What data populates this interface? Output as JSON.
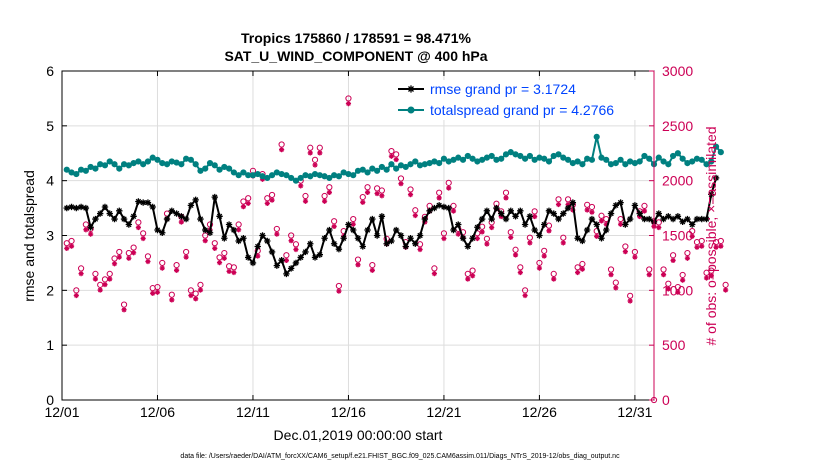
{
  "chart_data": {
    "type": "line",
    "title_line1": "Tropics 175860 / 178591 = 98.471%",
    "title_line2": "SAT_U_WIND_COMPONENT @ 400 hPa",
    "xlabel": "Dec.01,2019 00:00:00 start",
    "ylabel_left": "rmse and totalspread",
    "ylabel_right": "# of obs: o=possible; ×=assimilated",
    "footnote": "data file: /Users/raeder/DAI/ATM_forcXX/CAM6_setup/f.e21.FHIST_BGC.f09_025.CAM6assim.011/Diags_NTrS_2019-12/obs_diag_output.nc",
    "xlim": [
      1,
      32
    ],
    "ylim_left": [
      0,
      6
    ],
    "ylim_right": [
      0,
      3000
    ],
    "x_ticks": [
      1,
      6,
      11,
      16,
      21,
      26,
      31
    ],
    "x_tick_labels": [
      "12/01",
      "12/06",
      "12/11",
      "12/16",
      "12/21",
      "12/26",
      "12/31"
    ],
    "y_left_ticks": [
      0,
      1,
      2,
      3,
      4,
      5,
      6
    ],
    "y_left_tick_labels": [
      "0",
      "1",
      "2",
      "3",
      "4",
      "5",
      "6"
    ],
    "y_right_ticks": [
      0,
      500,
      1000,
      1500,
      2000,
      2500,
      3000
    ],
    "y_right_tick_labels": [
      "0",
      "500",
      "1000",
      "1500",
      "2000",
      "2500",
      "3000"
    ],
    "colors": {
      "rmse": "#000000",
      "spread": "#008080",
      "obs": "#cc0055",
      "legend_text": "#0044ff",
      "grid": "#dddddd"
    },
    "series": [
      {
        "name": "rmse",
        "legend": "rmse grand pr = 3.1724",
        "axis": "left",
        "x_start": 1.25,
        "x_step": 0.25,
        "values": [
          3.5,
          3.52,
          3.5,
          3.52,
          3.5,
          3.15,
          3.3,
          3.4,
          3.52,
          3.4,
          3.3,
          3.45,
          3.3,
          3.2,
          3.35,
          3.62,
          3.6,
          3.6,
          3.52,
          3.1,
          3.05,
          3.3,
          3.45,
          3.4,
          3.35,
          3.3,
          3.55,
          3.65,
          3.3,
          3.1,
          3.05,
          3.7,
          3.35,
          2.95,
          3.2,
          3.1,
          2.9,
          2.95,
          2.6,
          2.5,
          2.8,
          3.0,
          2.9,
          2.7,
          2.45,
          2.55,
          2.3,
          2.4,
          2.5,
          2.6,
          2.7,
          2.85,
          2.6,
          2.65,
          2.95,
          3.1,
          2.85,
          2.75,
          2.95,
          3.2,
          3.1,
          2.95,
          2.8,
          3.1,
          3.3,
          3.0,
          3.35,
          2.85,
          2.9,
          3.1,
          3.0,
          2.8,
          2.95,
          2.85,
          3.0,
          3.3,
          3.45,
          3.5,
          3.55,
          3.52,
          3.5,
          3.1,
          3.2,
          2.95,
          2.8,
          2.95,
          3.15,
          3.3,
          3.45,
          3.3,
          3.5,
          3.4,
          3.3,
          3.45,
          3.35,
          3.45,
          3.2,
          3.35,
          3.1,
          3.0,
          3.2,
          3.45,
          3.4,
          3.3,
          3.4,
          3.5,
          3.6,
          2.95,
          2.9,
          3.1,
          3.3,
          3.2,
          2.95,
          3.1,
          3.4,
          3.55,
          3.6,
          3.2,
          3.3,
          3.55,
          3.4,
          3.3,
          3.3,
          3.25,
          3.4,
          3.3,
          3.35,
          3.3,
          3.35,
          3.25,
          3.3,
          3.2,
          3.3,
          3.3,
          3.3,
          3.75,
          4.05
        ]
      },
      {
        "name": "totalspread",
        "legend": "totalspread grand pr = 4.2766",
        "axis": "left",
        "x_start": 1.25,
        "x_step": 0.25,
        "values": [
          4.2,
          4.15,
          4.12,
          4.2,
          4.18,
          4.25,
          4.22,
          4.3,
          4.28,
          4.35,
          4.3,
          4.22,
          4.3,
          4.28,
          4.32,
          4.35,
          4.3,
          4.35,
          4.42,
          4.38,
          4.32,
          4.3,
          4.35,
          4.33,
          4.3,
          4.4,
          4.38,
          4.3,
          4.18,
          4.22,
          4.32,
          4.28,
          4.2,
          4.25,
          4.22,
          4.15,
          4.1,
          4.15,
          4.1,
          4.1,
          4.12,
          4.08,
          4.05,
          4.1,
          4.15,
          4.12,
          4.1,
          4.05,
          4.0,
          4.05,
          4.1,
          4.08,
          4.12,
          4.1,
          4.08,
          4.05,
          4.1,
          4.08,
          4.15,
          4.12,
          4.1,
          4.18,
          4.2,
          4.15,
          4.22,
          4.18,
          4.25,
          4.2,
          4.3,
          4.22,
          4.28,
          4.25,
          4.3,
          4.35,
          4.28,
          4.3,
          4.32,
          4.35,
          4.32,
          4.4,
          4.35,
          4.38,
          4.42,
          4.38,
          4.45,
          4.4,
          4.35,
          4.38,
          4.42,
          4.45,
          4.38,
          4.4,
          4.48,
          4.52,
          4.48,
          4.45,
          4.4,
          4.45,
          4.38,
          4.42,
          4.4,
          4.35,
          4.45,
          4.48,
          4.42,
          4.38,
          4.32,
          4.35,
          4.3,
          4.4,
          4.38,
          4.8,
          4.42,
          4.38,
          4.3,
          4.32,
          4.38,
          4.3,
          4.35,
          4.32,
          4.35,
          4.45,
          4.4,
          4.3,
          4.42,
          4.35,
          4.3,
          4.45,
          4.5,
          4.4,
          4.32,
          4.35,
          4.4,
          4.38,
          4.3,
          4.35,
          4.62,
          4.52
        ]
      },
      {
        "name": "obs_possible",
        "axis": "right",
        "marker": "circle",
        "x_start": 1.25,
        "x_step": 0.25,
        "values": [
          1430,
          1450,
          1000,
          1200,
          1600,
          1560,
          1150,
          1050,
          1100,
          1150,
          1290,
          1350,
          870,
          1340,
          1390,
          1620,
          1520,
          1310,
          1020,
          1030,
          1250,
          1700,
          960,
          1230,
          1670,
          1350,
          1000,
          970,
          1050,
          1500,
          1600,
          1430,
          1300,
          1340,
          1220,
          1210,
          1600,
          1810,
          1840,
          2090,
          1360,
          2060,
          1840,
          1870,
          1560,
          2330,
          1320,
          1500,
          1420,
          2000,
          1860,
          2300,
          2190,
          2300,
          1860,
          1940,
          1630,
          1040,
          1540,
          2750,
          1650,
          1280,
          1850,
          1940,
          1230,
          1930,
          1910,
          1470,
          2270,
          2240,
          2020,
          1440,
          1920,
          1730,
          1420,
          1670,
          1770,
          1200,
          1890,
          1520,
          1980,
          1770,
          1560,
          1530,
          1150,
          1180,
          1520,
          1580,
          1470,
          1620,
          1790,
          1720,
          1890,
          1530,
          1370,
          1210,
          1000,
          1480,
          1720,
          1250,
          1360,
          1590,
          1150,
          1830,
          1480,
          1830,
          1780,
          1210,
          1240,
          1780,
          1760,
          1540,
          1680,
          1650,
          1190,
          1070,
          1650,
          1400,
          950,
          1350,
          1720,
          1770,
          1190,
          1630,
          1620,
          1190,
          1060,
          1320,
          1030,
          1140,
          1340,
          1540,
          1440,
          1450,
          1160,
          1180,
          1440,
          1450,
          1050
        ]
      },
      {
        "name": "obs_assimilated",
        "axis": "right",
        "marker": "asterisk",
        "x_start": 1.25,
        "x_step": 0.25,
        "values": [
          1410,
          1430,
          980,
          1180,
          1580,
          1540,
          1130,
          1030,
          1080,
          1130,
          1270,
          1330,
          850,
          1320,
          1370,
          1600,
          1500,
          1290,
          1000,
          1010,
          1230,
          1680,
          940,
          1210,
          1650,
          1330,
          980,
          950,
          1030,
          1480,
          1580,
          1410,
          1280,
          1320,
          1200,
          1190,
          1580,
          1790,
          1820,
          2070,
          1340,
          2040,
          1820,
          1850,
          1540,
          2310,
          1300,
          1480,
          1400,
          1980,
          1840,
          2280,
          2170,
          2280,
          1840,
          1920,
          1610,
          1020,
          1520,
          2730,
          1630,
          1260,
          1830,
          1920,
          1210,
          1910,
          1890,
          1450,
          2250,
          2220,
          2000,
          1420,
          1900,
          1710,
          1400,
          1650,
          1750,
          1180,
          1870,
          1500,
          1960,
          1750,
          1540,
          1510,
          1130,
          1160,
          1500,
          1560,
          1450,
          1600,
          1770,
          1700,
          1870,
          1510,
          1350,
          1190,
          980,
          1460,
          1700,
          1230,
          1340,
          1570,
          1130,
          1810,
          1460,
          1810,
          1760,
          1190,
          1220,
          1760,
          1740,
          1520,
          1660,
          1630,
          1170,
          1050,
          1630,
          1380,
          930,
          1330,
          1700,
          1750,
          1170,
          1610,
          1600,
          1170,
          1040,
          1300,
          1010,
          1120,
          1320,
          1520,
          1420,
          1430,
          1140,
          1160,
          1420,
          1430,
          1030
        ]
      }
    ]
  }
}
